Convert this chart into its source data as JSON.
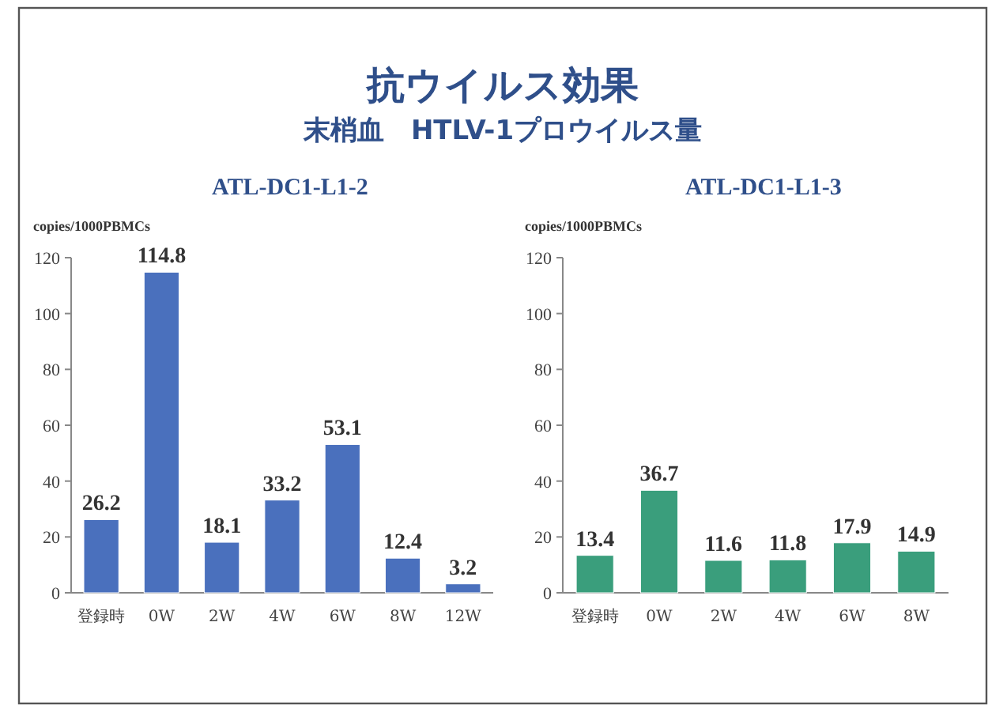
{
  "chart_data": [
    {
      "type": "bar",
      "title": "ATL-DC1-L1-2",
      "ylabel": "copies/1000PBMCs",
      "annotations": [
        "抗ウイルス効果",
        "末梢血　HTLV-1プロウイルス量"
      ],
      "categories": [
        "登録時",
        "0W",
        "2W",
        "4W",
        "6W",
        "8W",
        "12W"
      ],
      "values": [
        26.2,
        114.8,
        18.1,
        33.2,
        53.1,
        12.4,
        3.2
      ],
      "color": "#4a70bd",
      "ylim": [
        0,
        120
      ],
      "yticks": [
        0,
        20,
        40,
        60,
        80,
        100,
        120
      ],
      "data_labels": true
    },
    {
      "type": "bar",
      "title": "ATL-DC1-L1-3",
      "ylabel": "copies/1000PBMCs",
      "categories": [
        "登録時",
        "0W",
        "2W",
        "4W",
        "6W",
        "8W"
      ],
      "values": [
        13.4,
        36.7,
        11.6,
        11.8,
        17.9,
        14.9
      ],
      "color": "#3a9e7c",
      "ylim": [
        0,
        120
      ],
      "yticks": [
        0,
        20,
        40,
        60,
        80,
        100,
        120
      ],
      "data_labels": true
    }
  ]
}
